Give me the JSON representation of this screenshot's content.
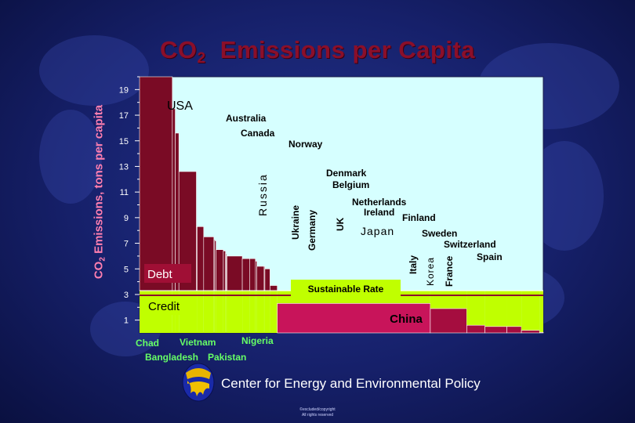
{
  "slide": {
    "title_main": "CO",
    "title_sub": "2",
    "title_rest": "Emissions per Capita",
    "footer": "Center for Energy and Environmental Policy",
    "copyright_line1": "©excluded/copyright",
    "copyright_line2": "All rights reserved"
  },
  "colors": {
    "plot_bg": "#d6ffff",
    "debt_bar": "#7a0b25",
    "credit_bar": "#c0ff00",
    "sustainable_band": "#8c0b2b",
    "china_bar": "#c8145a",
    "label_green": "#66ff66",
    "title": "#8b0f2a"
  },
  "chart_data": {
    "type": "bar",
    "title": "CO2 Emissions per Capita",
    "ylabel": "CO2 Emissions, tons per capita",
    "xlabel": "",
    "ylim": [
      0,
      20
    ],
    "yticks": [
      1,
      3,
      5,
      7,
      9,
      11,
      13,
      15,
      17,
      19
    ],
    "sustainable_rate": 3.3,
    "sustainable_label": "Sustainable Rate",
    "debt_label": "Debt",
    "credit_label": "Credit",
    "bars": [
      {
        "name": "USA",
        "value": 20.0,
        "share": 0.045,
        "show": "USA"
      },
      {
        "name": "Australia",
        "value": 17.5,
        "share": 0.004,
        "show": "Australia"
      },
      {
        "name": "Canada",
        "value": 15.6,
        "share": 0.005,
        "show": "Canada"
      },
      {
        "name": "Russia",
        "value": 12.6,
        "share": 0.024,
        "show": "Russia"
      },
      {
        "name": "Norway",
        "value": 8.3,
        "share": 0.001,
        "show": "Norway"
      },
      {
        "name": "Ukraine",
        "value": 8.3,
        "share": 0.009,
        "show": "Ukraine"
      },
      {
        "name": "Germany",
        "value": 7.5,
        "share": 0.014,
        "show": "Germany"
      },
      {
        "name": "Denmark",
        "value": 7.3,
        "share": 0.001,
        "show": ""
      },
      {
        "name": "Belgium",
        "value": 7.2,
        "share": 0.002,
        "show": ""
      },
      {
        "name": "UK",
        "value": 6.5,
        "share": 0.01,
        "show": "UK"
      },
      {
        "name": "Netherlands",
        "value": 6.4,
        "share": 0.003,
        "show": ""
      },
      {
        "name": "Ireland",
        "value": 6.2,
        "share": 0.001,
        "show": ""
      },
      {
        "name": "Finland",
        "value": 6.0,
        "share": 0.001,
        "show": ""
      },
      {
        "name": "Japan",
        "value": 6.0,
        "share": 0.021,
        "show": "Japan"
      },
      {
        "name": "Italy",
        "value": 5.8,
        "share": 0.01,
        "show": "Italy"
      },
      {
        "name": "Korea",
        "value": 5.8,
        "share": 0.008,
        "show": "Korea"
      },
      {
        "name": "Sweden",
        "value": 5.6,
        "share": 0.002,
        "show": ""
      },
      {
        "name": "France",
        "value": 5.2,
        "share": 0.01,
        "show": "France"
      },
      {
        "name": "Switzerland",
        "value": 5.2,
        "share": 0.001,
        "show": ""
      },
      {
        "name": "Spain",
        "value": 5.0,
        "share": 0.007,
        "show": ""
      },
      {
        "name": "rest-over",
        "value": 3.7,
        "share": 0.01,
        "show": ""
      },
      {
        "name": "China",
        "value": 2.3,
        "share": 0.21,
        "show": "China"
      },
      {
        "name": "rest-under",
        "value": 1.9,
        "share": 0.05,
        "show": ""
      },
      {
        "name": "Nigeria",
        "value": 0.6,
        "share": 0.025,
        "show": ""
      },
      {
        "name": "Pakistan",
        "value": 0.5,
        "share": 0.03,
        "show": ""
      },
      {
        "name": "Vietnam",
        "value": 0.5,
        "share": 0.02,
        "show": ""
      },
      {
        "name": "Bangladesh",
        "value": 0.2,
        "share": 0.025,
        "show": ""
      },
      {
        "name": "Chad",
        "value": 0.05,
        "share": 0.005,
        "show": ""
      }
    ],
    "annotations": {
      "usa": "USA",
      "australia": "Australia",
      "canada": "Canada",
      "norway": "Norway",
      "russia": "Russia",
      "ukraine": "Ukraine",
      "germany": "Germany",
      "uk": "UK",
      "denmark": "Denmark",
      "belgium": "Belgium",
      "netherlands": "Netherlands",
      "ireland": "Ireland",
      "finland": "Finland",
      "japan": "Japan",
      "sweden": "Sweden",
      "switzerland": "Switzerland",
      "spain": "Spain",
      "italy": "Italy",
      "korea": "Korea",
      "france": "France",
      "china": "China",
      "chad": "Chad",
      "vietnam": "Vietnam",
      "nigeria": "Nigeria",
      "bangladesh": "Bangladesh",
      "pakistan": "Pakistan"
    }
  }
}
